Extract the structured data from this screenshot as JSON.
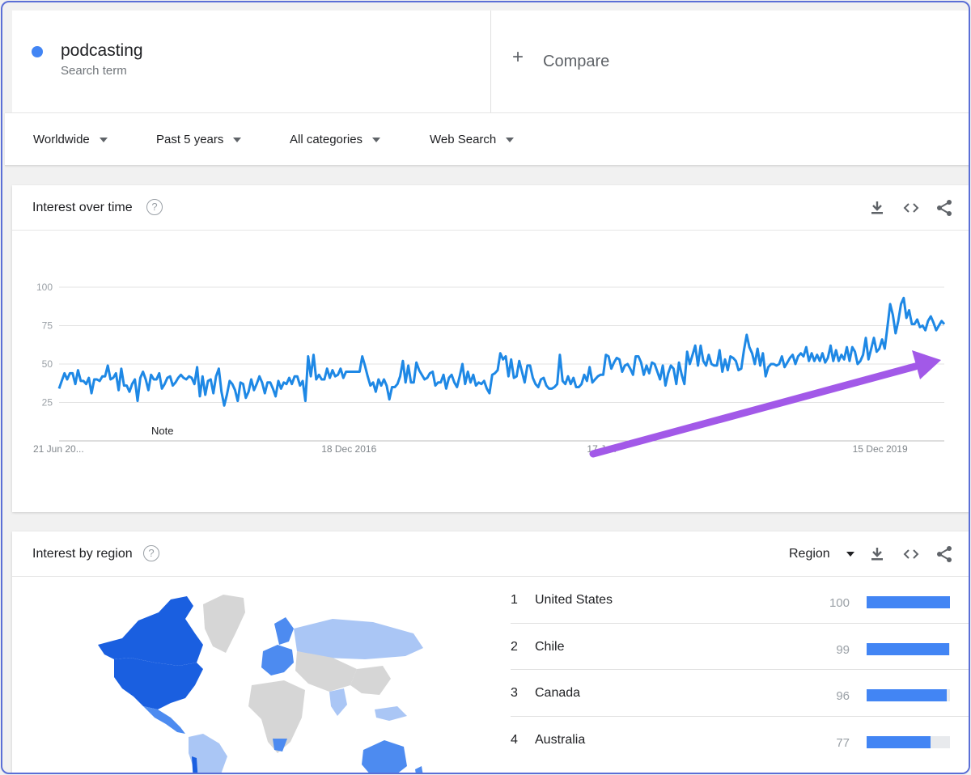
{
  "term": {
    "name": "podcasting",
    "subtitle": "Search term",
    "color": "#4285f4"
  },
  "compare": {
    "plus": "+",
    "label": "Compare"
  },
  "filters": {
    "region": "Worldwide",
    "period": "Past 5 years",
    "category": "All categories",
    "search_type": "Web Search"
  },
  "interest_over_time": {
    "title": "Interest over time",
    "help": "?",
    "note_label": "Note",
    "tools": [
      "download-icon",
      "embed-code-icon",
      "share-icon"
    ]
  },
  "chart_data": {
    "type": "line",
    "title": "",
    "xlabel": "",
    "ylabel": "",
    "ylim": [
      0,
      100
    ],
    "yticks": [
      25,
      50,
      75,
      100
    ],
    "xtick_labels": [
      "21 Jun 20...",
      "18 Dec 2016",
      "17 Jun",
      "15 Dec 2019"
    ],
    "grid": true,
    "series": [
      {
        "color": "#1e88e5",
        "values": [
          34,
          39,
          44,
          40,
          44,
          44,
          37,
          46,
          39,
          39,
          37,
          41,
          31,
          40,
          40,
          39,
          42,
          42,
          49,
          40,
          41,
          44,
          33,
          47,
          36,
          36,
          32,
          37,
          40,
          26,
          41,
          45,
          40,
          33,
          43,
          40,
          40,
          44,
          34,
          37,
          41,
          42,
          36,
          38,
          41,
          43,
          41,
          40,
          42,
          41,
          37,
          48,
          29,
          42,
          30,
          39,
          40,
          31,
          42,
          47,
          32,
          23,
          30,
          39,
          37,
          33,
          26,
          38,
          37,
          28,
          32,
          40,
          33,
          37,
          42,
          38,
          31,
          38,
          38,
          34,
          29,
          39,
          34,
          38,
          37,
          41,
          37,
          42,
          42,
          36,
          39,
          26,
          55,
          42,
          56,
          40,
          43,
          40,
          40,
          47,
          41,
          46,
          42,
          43,
          47,
          41,
          45,
          45,
          45,
          45,
          45,
          45,
          55,
          49,
          42,
          36,
          38,
          32,
          40,
          36,
          40,
          36,
          27,
          35,
          35,
          37,
          42,
          52,
          38,
          49,
          38,
          38,
          51,
          46,
          43,
          40,
          41,
          44,
          45,
          36,
          38,
          38,
          43,
          34,
          41,
          43,
          38,
          35,
          42,
          50,
          37,
          45,
          38,
          43,
          36,
          38,
          37,
          39,
          34,
          31,
          43,
          44,
          46,
          57,
          53,
          55,
          42,
          53,
          41,
          42,
          52,
          45,
          38,
          49,
          49,
          41,
          37,
          35,
          40,
          41,
          36,
          34,
          34,
          35,
          37,
          56,
          39,
          37,
          42,
          37,
          41,
          35,
          35,
          37,
          43,
          39,
          48,
          38,
          40,
          42,
          43,
          43,
          56,
          55,
          47,
          51,
          54,
          53,
          45,
          49,
          50,
          47,
          43,
          55,
          55,
          51,
          43,
          49,
          44,
          51,
          50,
          45,
          40,
          49,
          36,
          44,
          49,
          47,
          37,
          51,
          43,
          37,
          58,
          50,
          56,
          62,
          49,
          62,
          52,
          49,
          56,
          50,
          49,
          49,
          59,
          45,
          53,
          46,
          55,
          54,
          52,
          46,
          47,
          59,
          69,
          61,
          57,
          50,
          60,
          49,
          57,
          42,
          48,
          50,
          50,
          49,
          50,
          55,
          48,
          51,
          54,
          56,
          50,
          55,
          57,
          55,
          61,
          52,
          57,
          52,
          56,
          52,
          57,
          51,
          54,
          62,
          52,
          59,
          52,
          56,
          53,
          61,
          52,
          61,
          58,
          50,
          52,
          56,
          67,
          53,
          60,
          67,
          58,
          60,
          66,
          60,
          74,
          89,
          82,
          70,
          78,
          89,
          93,
          80,
          85,
          76,
          76,
          79,
          74,
          75,
          72,
          78,
          81,
          77,
          72,
          75,
          78,
          76
        ]
      }
    ]
  },
  "interest_by_region": {
    "title": "Interest by region",
    "help": "?",
    "resolution": "Region",
    "tools": [
      "download-icon",
      "embed-code-icon",
      "share-icon"
    ],
    "rows": [
      {
        "rank": "1",
        "name": "United States",
        "value": "100",
        "score": 100
      },
      {
        "rank": "2",
        "name": "Chile",
        "value": "99",
        "score": 99
      },
      {
        "rank": "3",
        "name": "Canada",
        "value": "96",
        "score": 96
      },
      {
        "rank": "4",
        "name": "Australia",
        "value": "77",
        "score": 77
      }
    ],
    "map_colors": {
      "high": "#1a5fe0",
      "mid": "#4d8bf0",
      "low": "#aac6f5",
      "none": "#d6d6d6"
    }
  },
  "annotation": {
    "arrow_color": "#a259e8"
  }
}
